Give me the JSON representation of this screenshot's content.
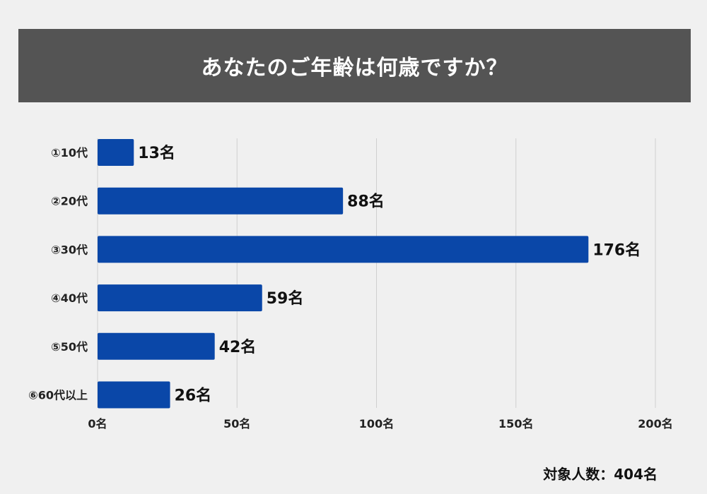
{
  "chart_data": {
    "type": "bar",
    "orientation": "horizontal",
    "title": "あなたのご年齢は何歳ですか？",
    "categories": [
      "①10代",
      "②20代",
      "③30代",
      "④40代",
      "⑤50代",
      "⑥60代以上"
    ],
    "values": [
      13,
      88,
      176,
      59,
      42,
      26
    ],
    "value_labels": [
      "13名",
      "88名",
      "176名",
      "59名",
      "42名",
      "26名"
    ],
    "x_ticks": [
      0,
      50,
      100,
      150,
      200
    ],
    "x_tick_labels": [
      "0名",
      "50名",
      "100名",
      "150名",
      "200名"
    ],
    "xlim": [
      0,
      200
    ],
    "xlabel": "",
    "ylabel": "",
    "grid": true,
    "bar_color": "#0a47a8"
  },
  "footer": {
    "total_label": "対象人数：404名"
  }
}
